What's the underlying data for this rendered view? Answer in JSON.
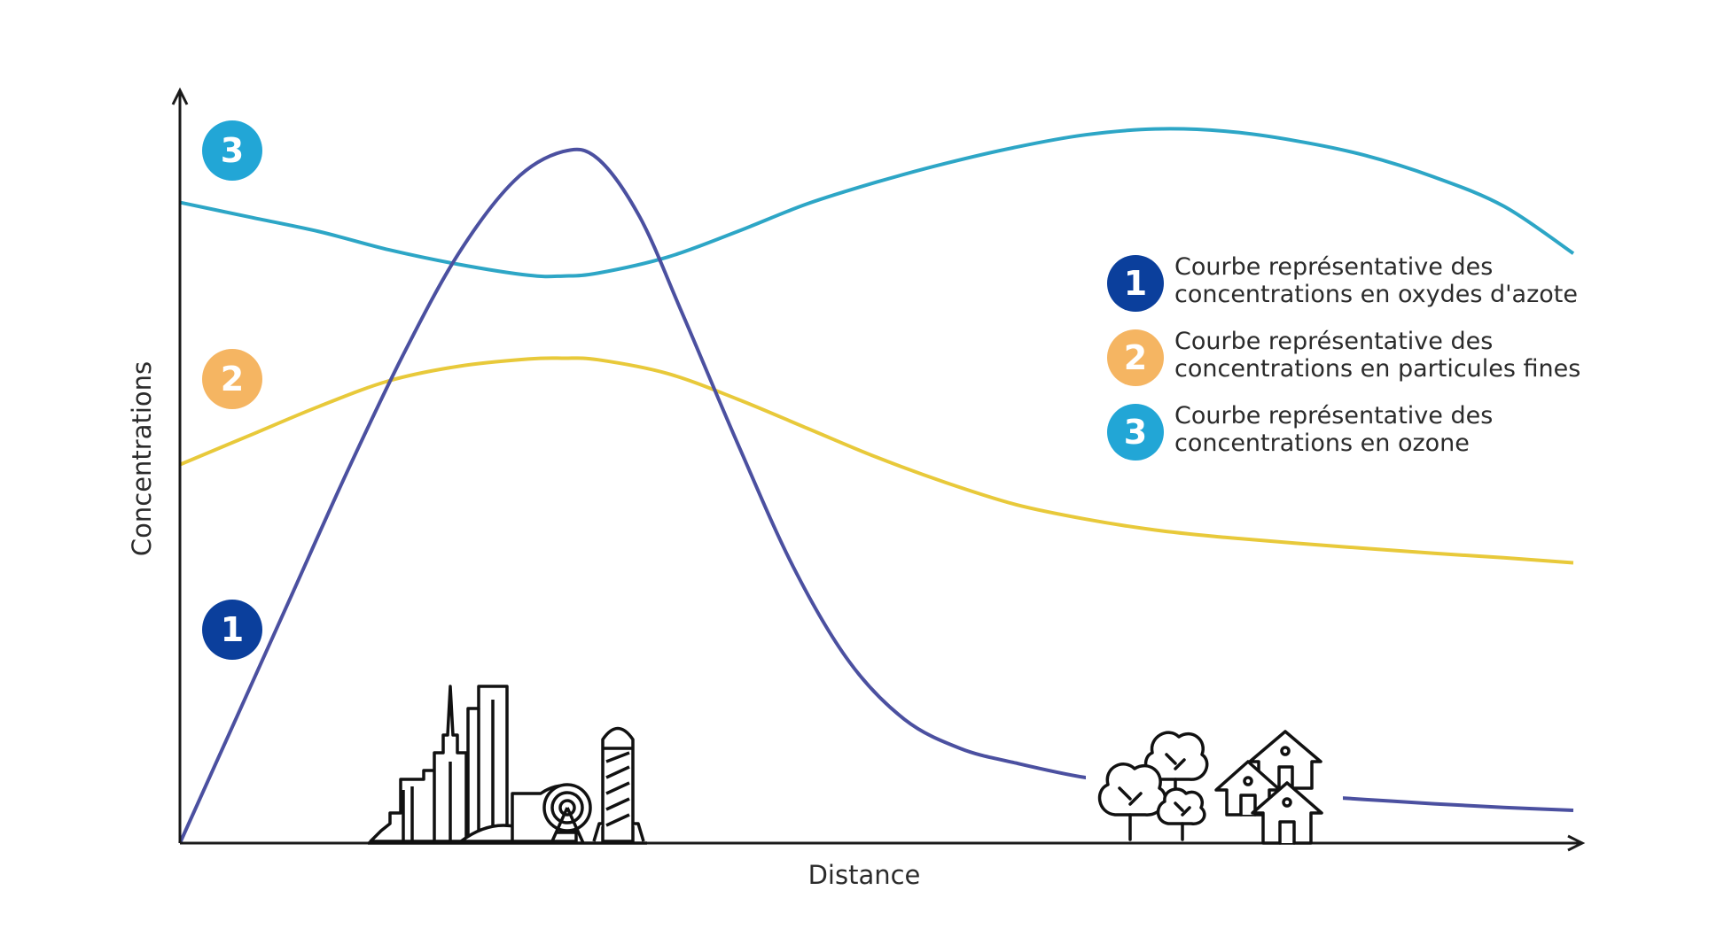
{
  "chart_data": {
    "type": "line",
    "title": "",
    "xlabel": "Distance",
    "ylabel": "Concentrations",
    "x_ticks": "none",
    "y_ticks": "none",
    "grid": false,
    "legend_position": "top-right",
    "xlim": [
      0,
      100
    ],
    "ylim": [
      0,
      100
    ],
    "series": [
      {
        "id": "1",
        "color": "#4b50a0",
        "legend_label": [
          "Courbe représentative des",
          "concentrations en oxydes d'azote"
        ],
        "badge_color": "#0b3f9c",
        "x": [
          0,
          4,
          8,
          12,
          16,
          20,
          24,
          27.5,
          30,
          33,
          36,
          40,
          44,
          48,
          52,
          56,
          60,
          65,
          70,
          75,
          80,
          85,
          90,
          95,
          100
        ],
        "y": [
          0,
          17,
          34,
          51,
          67,
          81,
          91,
          95,
          94,
          86,
          73,
          55,
          38,
          25,
          17,
          13,
          11,
          9,
          8,
          7.3,
          6.6,
          6,
          5.4,
          4.9,
          4.5
        ]
      },
      {
        "id": "2",
        "color": "#e8c93a",
        "legend_label": [
          "Courbe représentative des",
          "concentrations en particules fines"
        ],
        "badge_color": "#f5b562",
        "x": [
          0,
          5,
          10,
          15,
          20,
          25,
          27.5,
          30,
          35,
          40,
          45,
          50,
          55,
          60,
          65,
          70,
          75,
          80,
          85,
          90,
          95,
          100
        ],
        "y": [
          52,
          56,
          60,
          63.5,
          65.5,
          66.5,
          66.6,
          66.4,
          64.5,
          61,
          57,
          53,
          49.5,
          46.5,
          44.5,
          43,
          42,
          41.2,
          40.5,
          39.8,
          39.2,
          38.5
        ]
      },
      {
        "id": "3",
        "color": "#2da6c6",
        "legend_label": [
          "Courbe représentative des",
          "concentrations en ozone"
        ],
        "badge_color": "#22a6d6",
        "x": [
          0,
          5,
          10,
          15,
          20,
          25,
          27.5,
          30,
          35,
          40,
          45,
          50,
          55,
          60,
          65,
          70,
          75,
          80,
          85,
          90,
          95,
          100
        ],
        "y": [
          88,
          86,
          84,
          81.5,
          79.5,
          78,
          77.9,
          78.3,
          80.5,
          84,
          87.8,
          90.8,
          93.4,
          95.6,
          97.3,
          98.1,
          97.8,
          96.5,
          94.5,
          91.5,
          87.5,
          81
        ]
      }
    ]
  },
  "badges": [
    {
      "series": "3",
      "label": "3",
      "color": "#22a6d6"
    },
    {
      "series": "2",
      "label": "2",
      "color": "#f5b562"
    },
    {
      "series": "1",
      "label": "1",
      "color": "#0b3f9c"
    }
  ],
  "icons": {
    "city": "city-skyline-icon",
    "countryside": "trees-and-houses-icon"
  },
  "colors": {
    "axis": "#1a1a1a",
    "text": "#2b2b2b",
    "icon_stroke": "#111111"
  }
}
